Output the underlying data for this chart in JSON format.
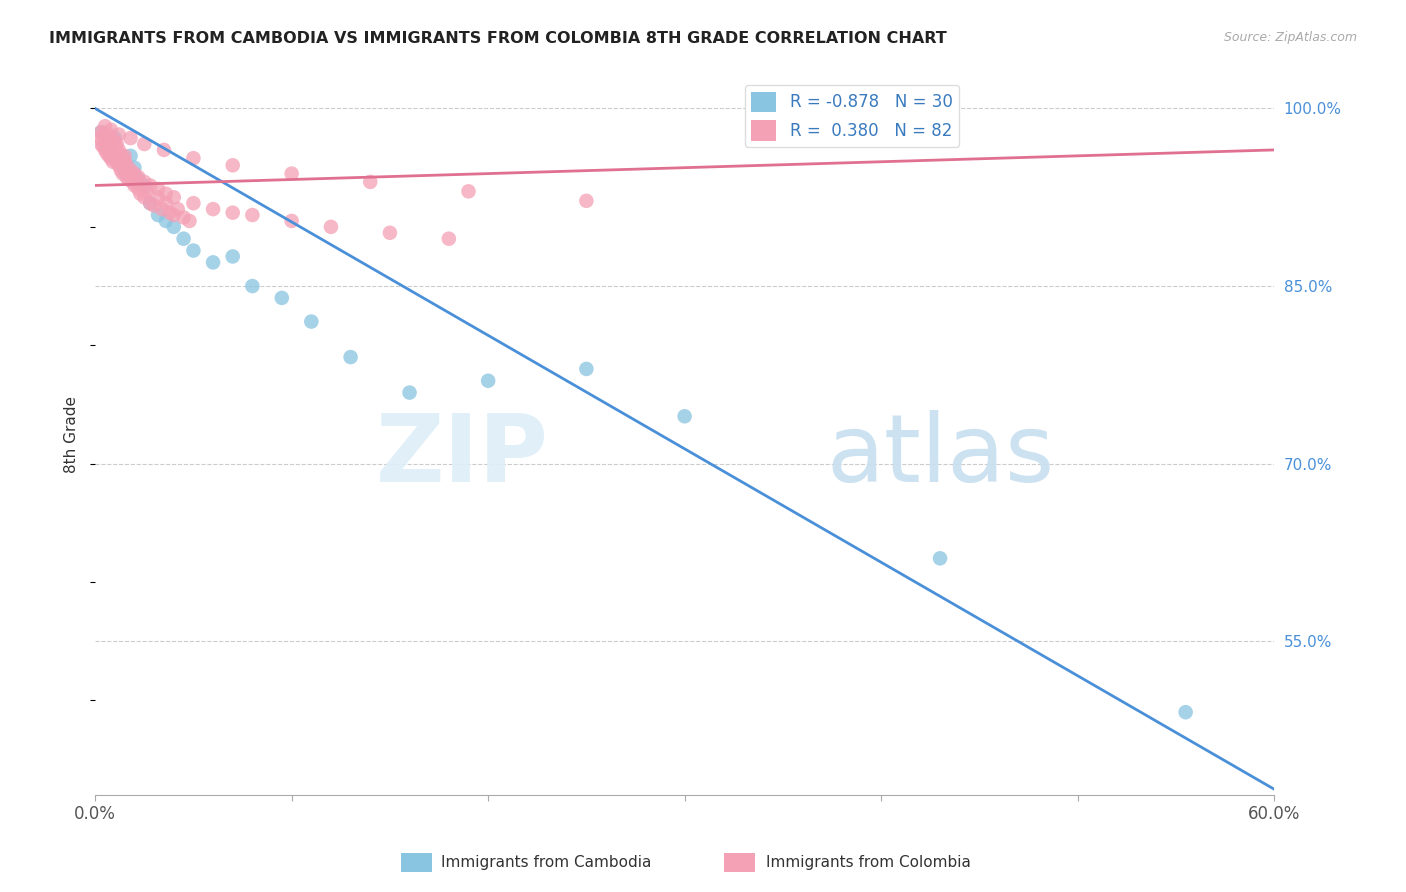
{
  "title": "IMMIGRANTS FROM CAMBODIA VS IMMIGRANTS FROM COLOMBIA 8TH GRADE CORRELATION CHART",
  "source": "Source: ZipAtlas.com",
  "ylabel": "8th Grade",
  "legend_label_blue": "Immigrants from Cambodia",
  "legend_label_pink": "Immigrants from Colombia",
  "R_blue": -0.878,
  "N_blue": 30,
  "R_pink": 0.38,
  "N_pink": 82,
  "blue_color": "#89c4e1",
  "pink_color": "#f4a0b5",
  "blue_line_color": "#4a90d9",
  "pink_line_color": "#e07090",
  "xlim": [
    0.0,
    0.6
  ],
  "ylim": [
    0.42,
    1.03
  ],
  "blue_line_x0": 0.0,
  "blue_line_y0": 1.0,
  "blue_line_x1": 0.6,
  "blue_line_y1": 0.425,
  "pink_line_x0": 0.0,
  "pink_line_y0": 0.935,
  "pink_line_x1": 0.6,
  "pink_line_y1": 0.965,
  "blue_scatter_x": [
    0.003,
    0.005,
    0.007,
    0.008,
    0.01,
    0.012,
    0.014,
    0.016,
    0.018,
    0.02,
    0.022,
    0.025,
    0.028,
    0.032,
    0.036,
    0.04,
    0.045,
    0.05,
    0.06,
    0.07,
    0.08,
    0.095,
    0.11,
    0.13,
    0.16,
    0.2,
    0.25,
    0.3,
    0.43,
    0.555
  ],
  "blue_scatter_y": [
    0.98,
    0.97,
    0.965,
    0.96,
    0.975,
    0.955,
    0.95,
    0.945,
    0.96,
    0.95,
    0.94,
    0.935,
    0.92,
    0.91,
    0.905,
    0.9,
    0.89,
    0.88,
    0.87,
    0.875,
    0.85,
    0.84,
    0.82,
    0.79,
    0.76,
    0.77,
    0.78,
    0.74,
    0.62,
    0.49
  ],
  "pink_scatter_x": [
    0.002,
    0.003,
    0.004,
    0.005,
    0.005,
    0.006,
    0.007,
    0.007,
    0.008,
    0.008,
    0.009,
    0.01,
    0.01,
    0.011,
    0.012,
    0.012,
    0.013,
    0.014,
    0.015,
    0.015,
    0.016,
    0.017,
    0.018,
    0.019,
    0.02,
    0.021,
    0.022,
    0.023,
    0.025,
    0.026,
    0.028,
    0.03,
    0.032,
    0.034,
    0.036,
    0.038,
    0.04,
    0.042,
    0.045,
    0.048,
    0.003,
    0.004,
    0.005,
    0.006,
    0.007,
    0.008,
    0.009,
    0.01,
    0.011,
    0.012,
    0.013,
    0.014,
    0.015,
    0.016,
    0.018,
    0.02,
    0.022,
    0.025,
    0.028,
    0.032,
    0.036,
    0.04,
    0.05,
    0.06,
    0.07,
    0.08,
    0.1,
    0.12,
    0.15,
    0.18,
    0.005,
    0.008,
    0.012,
    0.018,
    0.025,
    0.035,
    0.05,
    0.07,
    0.1,
    0.14,
    0.19,
    0.25
  ],
  "pink_scatter_y": [
    0.975,
    0.97,
    0.968,
    0.965,
    0.97,
    0.962,
    0.96,
    0.975,
    0.958,
    0.965,
    0.955,
    0.96,
    0.972,
    0.955,
    0.952,
    0.965,
    0.948,
    0.945,
    0.955,
    0.96,
    0.942,
    0.94,
    0.945,
    0.938,
    0.935,
    0.94,
    0.932,
    0.928,
    0.925,
    0.93,
    0.92,
    0.918,
    0.925,
    0.915,
    0.92,
    0.912,
    0.91,
    0.915,
    0.908,
    0.905,
    0.98,
    0.978,
    0.975,
    0.972,
    0.978,
    0.97,
    0.968,
    0.965,
    0.97,
    0.962,
    0.96,
    0.958,
    0.955,
    0.952,
    0.948,
    0.945,
    0.942,
    0.938,
    0.935,
    0.932,
    0.928,
    0.925,
    0.92,
    0.915,
    0.912,
    0.91,
    0.905,
    0.9,
    0.895,
    0.89,
    0.985,
    0.982,
    0.978,
    0.975,
    0.97,
    0.965,
    0.958,
    0.952,
    0.945,
    0.938,
    0.93,
    0.922
  ],
  "watermark_zip": "ZIP",
  "watermark_atlas": "atlas"
}
